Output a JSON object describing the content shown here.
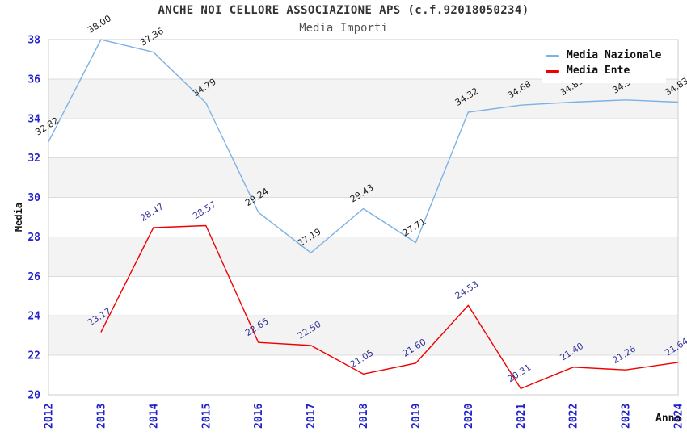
{
  "chart_data": {
    "type": "line",
    "title": "ANCHE NOI CELLORE ASSOCIAZIONE APS (c.f.92018050234)",
    "subtitle": "Media Importi",
    "xlabel": "Anno",
    "ylabel": "Media",
    "ylim": [
      20,
      38
    ],
    "ytick_step": 2,
    "xticks": [
      2012,
      2013,
      2014,
      2015,
      2016,
      2017,
      2018,
      2019,
      2020,
      2021,
      2022,
      2023,
      2024
    ],
    "grid": "horizontal-gridlines-with-alternating-bands",
    "legend_position": "top-right-inside",
    "label_decimals": 2,
    "series": [
      {
        "name": "Media Nazionale",
        "color": "#7CB2E4",
        "label_color": "#1A1A1A",
        "x": [
          2012,
          2013,
          2014,
          2015,
          2016,
          2017,
          2018,
          2019,
          2020,
          2021,
          2022,
          2023,
          2024
        ],
        "values": [
          32.82,
          38.0,
          37.36,
          34.79,
          29.24,
          27.19,
          29.43,
          27.71,
          34.32,
          34.68,
          34.83,
          34.94,
          34.83
        ]
      },
      {
        "name": "Media Ente",
        "color": "#F00000",
        "label_color": "#333399",
        "x": [
          2013,
          2014,
          2015,
          2016,
          2017,
          2018,
          2019,
          2020,
          2021,
          2022,
          2023,
          2024
        ],
        "values": [
          23.17,
          28.47,
          28.57,
          22.65,
          22.5,
          21.05,
          21.6,
          24.53,
          20.31,
          21.4,
          21.26,
          21.64
        ]
      }
    ],
    "colors": {
      "axis_tick_labels": "#2222CC",
      "band_fill": "#F3F3F3",
      "gridline": "#DCDCDC",
      "plot_border": "#CCCCCC",
      "title_text": "#333333",
      "subtitle_text": "#555555",
      "legend_text": "#111111",
      "background": "#FFFFFF"
    }
  }
}
